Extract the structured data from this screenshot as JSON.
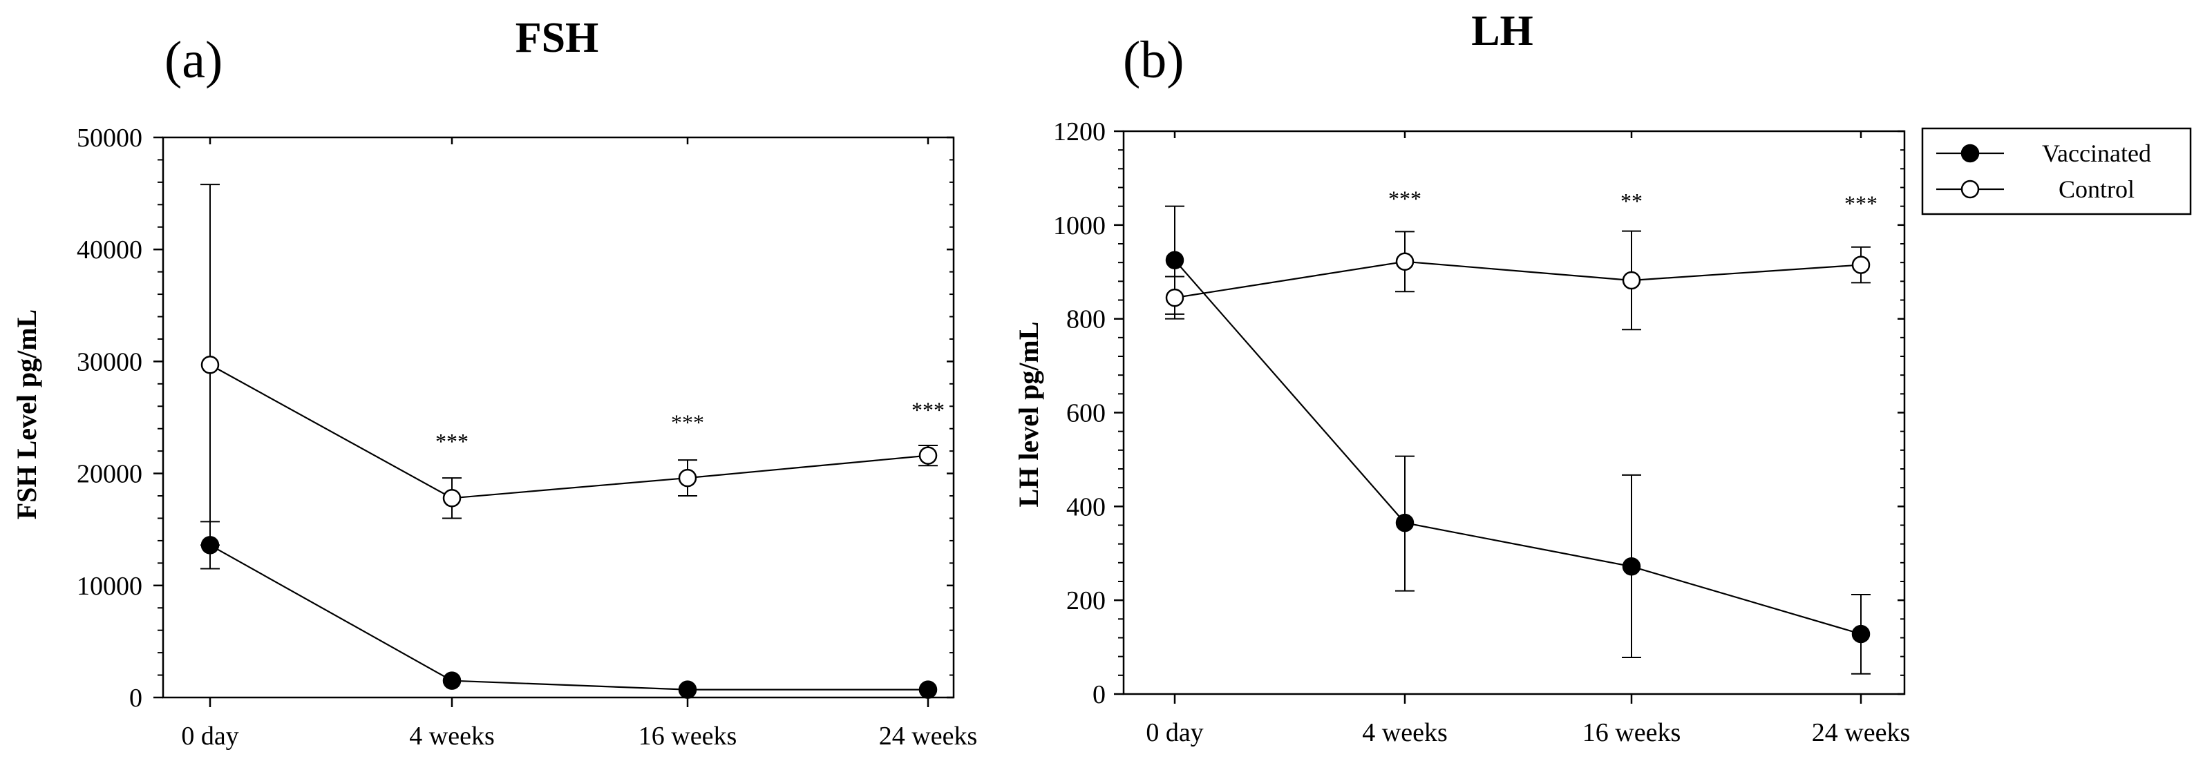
{
  "chart_data": [
    {
      "type": "line",
      "panel_label": "(a)",
      "title": "FSH",
      "xlabel": "",
      "ylabel": "FSH Level pg/mL",
      "categories": [
        "0 day",
        "4 weeks",
        "16 weeks",
        "24 weeks"
      ],
      "ylim": [
        0,
        50000
      ],
      "yticks": [
        0,
        10000,
        20000,
        30000,
        40000,
        50000
      ],
      "ytick_labels": [
        "0",
        "10000",
        "20000",
        "30000",
        "40000",
        "50000"
      ],
      "series": [
        {
          "name": "Vaccinated",
          "marker": "filled",
          "values": [
            13600,
            1500,
            700,
            700
          ],
          "err_low": [
            11500,
            1500,
            700,
            700
          ],
          "err_high": [
            15700,
            1500,
            700,
            700
          ]
        },
        {
          "name": "Control",
          "marker": "open",
          "values": [
            29700,
            17800,
            19600,
            21600
          ],
          "err_low": [
            13600,
            16000,
            18000,
            20700
          ],
          "err_high": [
            45800,
            19600,
            21200,
            22500
          ]
        }
      ],
      "annotations": [
        {
          "category": "4 weeks",
          "text": "***",
          "y": 22200
        },
        {
          "category": "16 weeks",
          "text": "***",
          "y": 23900
        },
        {
          "category": "24 weeks",
          "text": "***",
          "y": 25000
        }
      ]
    },
    {
      "type": "line",
      "panel_label": "(b)",
      "title": "LH",
      "xlabel": "",
      "ylabel": "LH level pg/mL",
      "categories": [
        "0 day",
        "4 weeks",
        "16 weeks",
        "24 weeks"
      ],
      "ylim": [
        0,
        1200
      ],
      "yticks": [
        0,
        200,
        400,
        600,
        800,
        1000,
        1200
      ],
      "ytick_labels": [
        "0",
        "200",
        "400",
        "600",
        "800",
        "1000",
        "1200"
      ],
      "series": [
        {
          "name": "Vaccinated",
          "marker": "filled",
          "values": [
            925,
            365,
            272,
            128
          ],
          "err_low": [
            810,
            220,
            78,
            43
          ],
          "err_high": [
            1040,
            507,
            467,
            212
          ]
        },
        {
          "name": "Control",
          "marker": "open",
          "values": [
            845,
            922,
            882,
            915
          ],
          "err_low": [
            800,
            858,
            777,
            877
          ],
          "err_high": [
            890,
            986,
            987,
            953
          ]
        }
      ],
      "annotations": [
        {
          "category": "4 weeks",
          "text": "***",
          "y": 1040
        },
        {
          "category": "16 weeks",
          "text": "**",
          "y": 1035
        },
        {
          "category": "24 weeks",
          "text": "***",
          "y": 1030
        }
      ],
      "legend": {
        "position": "top-right-outside",
        "entries": [
          {
            "name": "Vaccinated",
            "marker": "filled"
          },
          {
            "name": "Control",
            "marker": "open"
          }
        ]
      }
    }
  ]
}
